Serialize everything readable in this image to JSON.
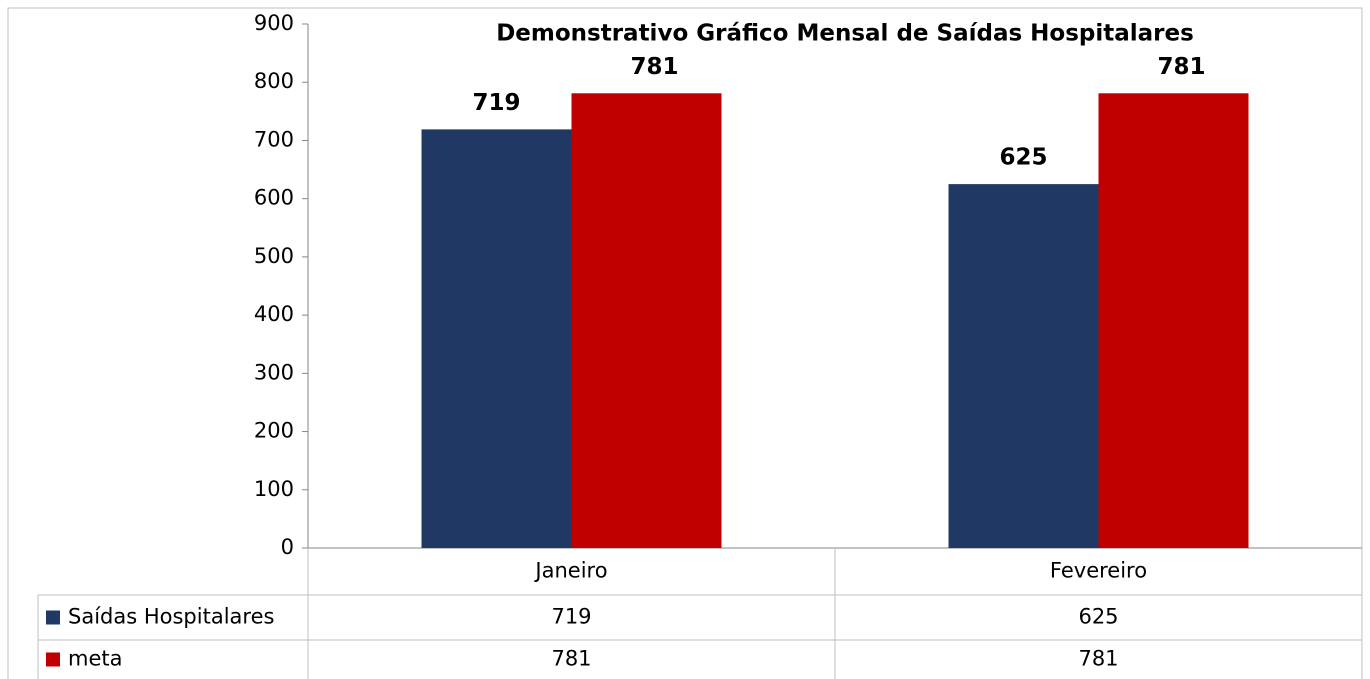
{
  "chart_data": {
    "type": "bar",
    "title": "Demonstrativo Gráfico Mensal de Saídas Hospitalares",
    "categories": [
      "Janeiro",
      "Fevereiro"
    ],
    "series": [
      {
        "name": "Saídas Hospitalares",
        "color": "#203864",
        "values": [
          719,
          625
        ]
      },
      {
        "name": "meta",
        "color": "#c00000",
        "values": [
          781,
          781
        ]
      }
    ],
    "ylim": [
      0,
      900
    ],
    "yticks": [
      0,
      100,
      200,
      300,
      400,
      500,
      600,
      700,
      800,
      900
    ],
    "grid": false
  }
}
